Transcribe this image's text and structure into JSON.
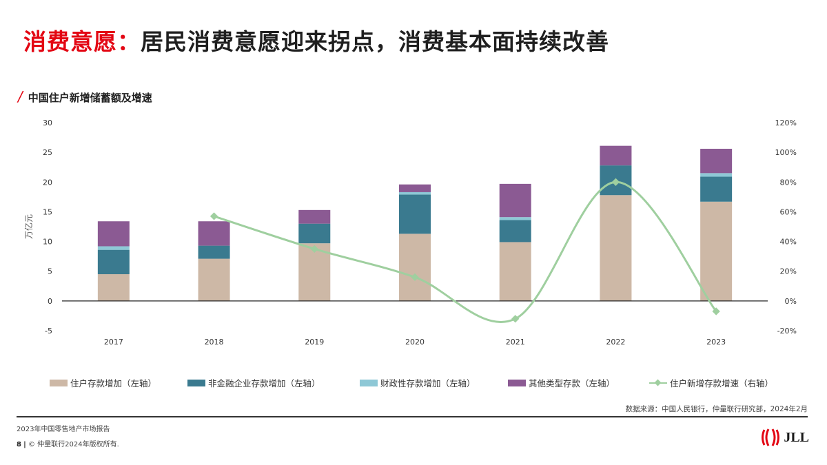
{
  "headline": {
    "accent": "消费意愿：",
    "rest": "居民消费意愿迎来拐点，消费基本面持续改善"
  },
  "subtitle": "中国住户新增储蓄额及增速",
  "chart_data": {
    "type": "bar",
    "stacked": true,
    "categories": [
      "2017",
      "2018",
      "2019",
      "2020",
      "2021",
      "2022",
      "2023"
    ],
    "ylabel": "万亿元",
    "ylim": [
      -5,
      30
    ],
    "yticks": [
      -5,
      0,
      5,
      10,
      15,
      20,
      25,
      30
    ],
    "y2lim": [
      -20,
      120
    ],
    "y2ticks": [
      "-20%",
      "0%",
      "20%",
      "40%",
      "60%",
      "80%",
      "100%",
      "120%"
    ],
    "series": [
      {
        "name": "住户存款增加（左轴）",
        "axis": "left",
        "color": "#cdb8a6",
        "values": [
          4.5,
          7.1,
          9.7,
          11.3,
          9.9,
          17.8,
          16.7
        ]
      },
      {
        "name": "非金融企业存款增加（左轴）",
        "axis": "left",
        "color": "#3a7a8f",
        "values": [
          4.1,
          2.2,
          3.3,
          6.6,
          3.7,
          5.0,
          4.2
        ]
      },
      {
        "name": "财政性存款增加（左轴）",
        "axis": "left",
        "color": "#8ec8d6",
        "values": [
          0.6,
          0.0,
          0.0,
          0.4,
          0.5,
          0.0,
          0.6
        ]
      },
      {
        "name": "其他类型存款（左轴）",
        "axis": "left",
        "color": "#8b5a93",
        "values": [
          4.2,
          4.1,
          2.3,
          1.3,
          5.6,
          3.3,
          4.1
        ]
      },
      {
        "name": "住户新增存款增速（右轴）",
        "axis": "right",
        "type": "line",
        "color": "#9fcf9f",
        "values": [
          null,
          57,
          35,
          16,
          -12,
          80,
          -7
        ]
      }
    ],
    "grid": false,
    "legend": "bottom"
  },
  "source": "数据来源：中国人民银行，仲量联行研究部，2024年2月",
  "footer": {
    "report": "2023年中国零售地产市场报告",
    "page": "8",
    "copyright": "© 仲量联行2024年版权所有."
  },
  "logo": {
    "text": "JLL",
    "color": "#e30613"
  }
}
